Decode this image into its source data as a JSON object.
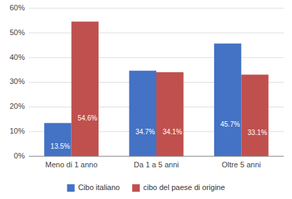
{
  "chart_data": {
    "type": "bar",
    "categories": [
      "Meno di 1 anno",
      "Da 1 a 5 anni",
      "Oltre 5 anni"
    ],
    "series": [
      {
        "name": "Cibo italiano",
        "color": "#4472C4",
        "values": [
          13.5,
          34.7,
          45.7
        ],
        "value_labels": [
          "13.5%",
          "34.7%",
          "45.7%"
        ]
      },
      {
        "name": "cibo del paese di origine",
        "color": "#C0504D",
        "values": [
          54.6,
          34.1,
          33.1
        ],
        "value_labels": [
          "54.6%",
          "34.1%",
          "33.1%"
        ]
      }
    ],
    "ylim": [
      0,
      60
    ],
    "yticks": [
      {
        "value": 0,
        "label": "0%"
      },
      {
        "value": 10,
        "label": "10%"
      },
      {
        "value": 20,
        "label": "20%"
      },
      {
        "value": 30,
        "label": "30%"
      },
      {
        "value": 40,
        "label": "40%"
      },
      {
        "value": 50,
        "label": "50%"
      },
      {
        "value": 60,
        "label": "60%"
      }
    ],
    "grid": true,
    "legend": "bottom",
    "data_labels": true
  }
}
